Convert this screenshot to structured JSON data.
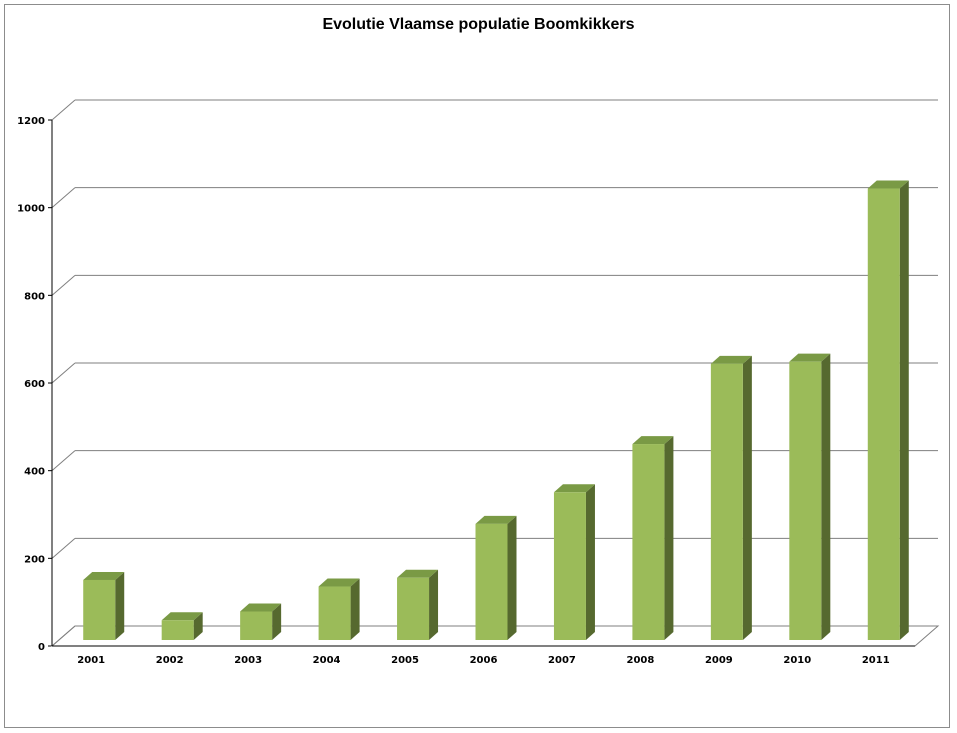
{
  "chart_data": {
    "type": "bar",
    "title": "Evolutie Vlaamse populatie Boomkikkers",
    "categories": [
      "2001",
      "2002",
      "2003",
      "2004",
      "2005",
      "2006",
      "2007",
      "2008",
      "2009",
      "2010",
      "2011"
    ],
    "values": [
      137,
      45,
      65,
      122,
      142,
      265,
      337,
      447,
      630,
      635,
      1030
    ],
    "ylim": [
      0,
      1200
    ],
    "yticks": [
      0,
      200,
      400,
      600,
      800,
      1000,
      1200
    ],
    "grid": true,
    "legend": "none",
    "colors": {
      "bar_front": "#9bbb59",
      "bar_top": "#7a9a45",
      "bar_side": "#56692f",
      "grid": "#7f7f7f"
    }
  }
}
